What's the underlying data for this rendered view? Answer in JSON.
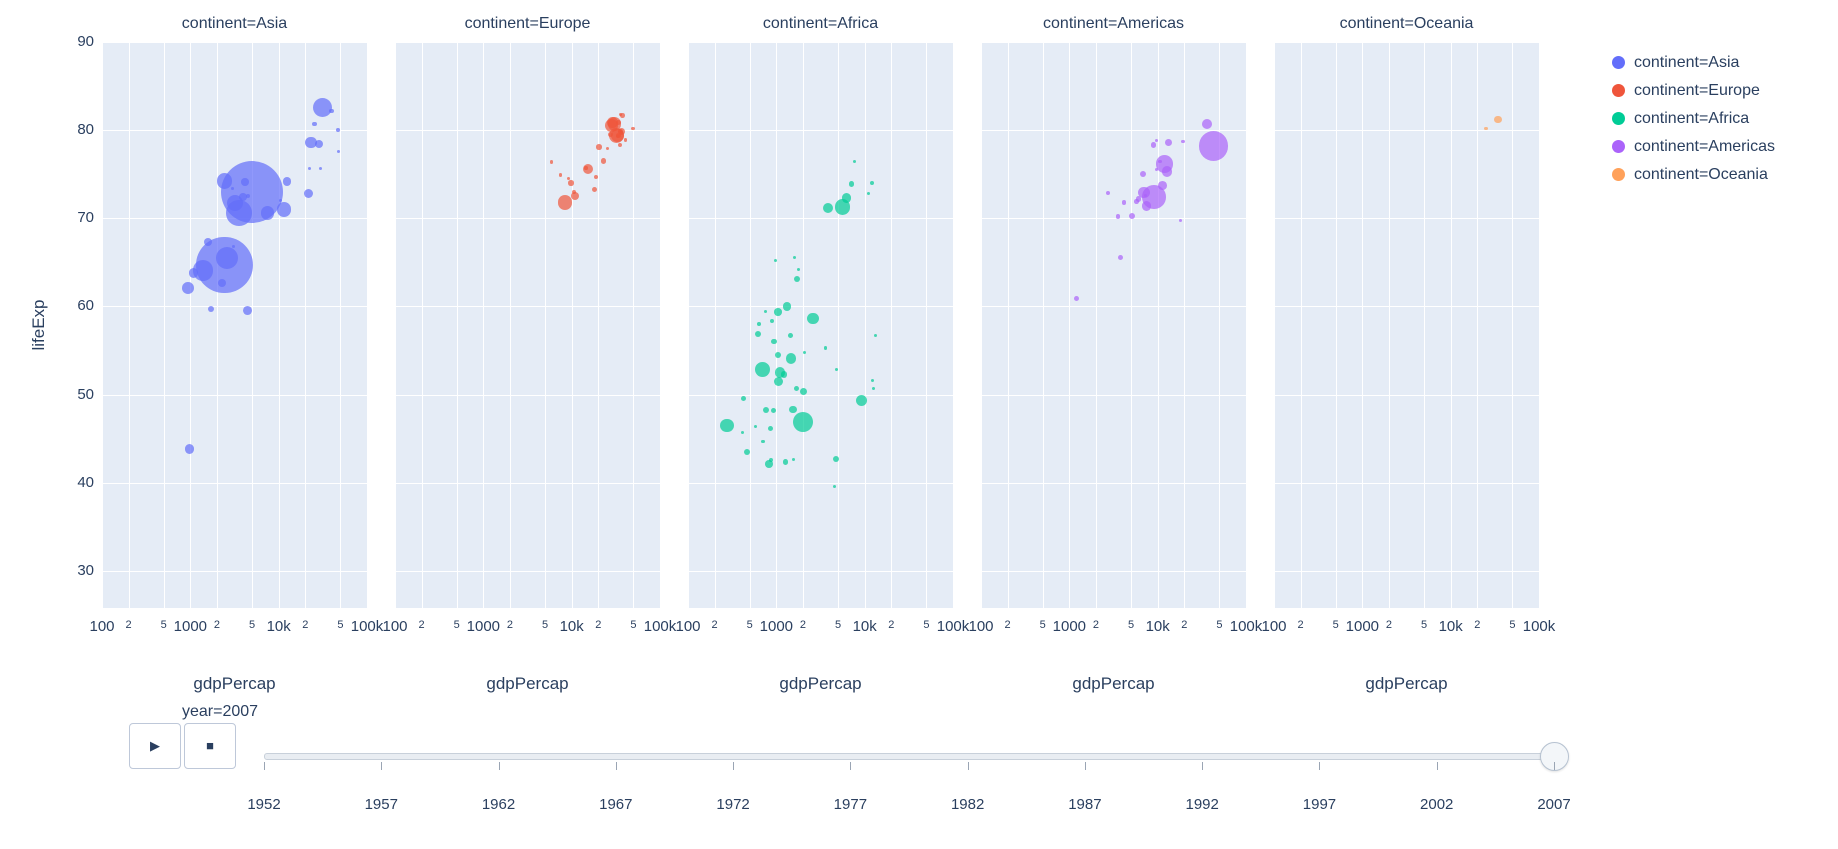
{
  "chart_data": {
    "type": "scatter",
    "title": "",
    "xlabel": "gdpPercap",
    "ylabel": "lifeExp",
    "x_scale": "log",
    "x_range": [
      100,
      100000
    ],
    "y_range": [
      25.8,
      90
    ],
    "y_ticks": [
      30,
      40,
      50,
      60,
      70,
      80,
      90
    ],
    "x_ticks": [
      {
        "value": 100,
        "label": "100",
        "minor": false
      },
      {
        "value": 200,
        "label": "2",
        "minor": true
      },
      {
        "value": 500,
        "label": "5",
        "minor": true
      },
      {
        "value": 1000,
        "label": "1000",
        "minor": false
      },
      {
        "value": 2000,
        "label": "2",
        "minor": true
      },
      {
        "value": 5000,
        "label": "5",
        "minor": true
      },
      {
        "value": 10000,
        "label": "10k",
        "minor": false
      },
      {
        "value": 20000,
        "label": "2",
        "minor": true
      },
      {
        "value": 50000,
        "label": "5",
        "minor": true
      },
      {
        "value": 100000,
        "label": "100k",
        "minor": false
      }
    ],
    "legend_position": "right",
    "grid": true,
    "size_dimension": "population_millions",
    "facets": [
      {
        "title": "continent=Asia",
        "series": "continent=Asia"
      },
      {
        "title": "continent=Europe",
        "series": "continent=Europe"
      },
      {
        "title": "continent=Africa",
        "series": "continent=Africa"
      },
      {
        "title": "continent=Americas",
        "series": "continent=Americas"
      },
      {
        "title": "continent=Oceania",
        "series": "continent=Oceania"
      }
    ],
    "series": [
      {
        "name": "continent=Asia",
        "color": "#636EFA",
        "points": [
          [
            975,
            43.8,
            31.9
          ],
          [
            29796,
            75.6,
            0.7
          ],
          [
            1391,
            64.1,
            150.4
          ],
          [
            1714,
            59.7,
            14.1
          ],
          [
            4959,
            73.0,
            1318.7
          ],
          [
            39725,
            82.2,
            7.0
          ],
          [
            2452,
            64.7,
            1110.4
          ],
          [
            3541,
            70.6,
            223.5
          ],
          [
            11606,
            71.0,
            69.5
          ],
          [
            4471,
            59.5,
            27.5
          ],
          [
            25523,
            80.7,
            6.4
          ],
          [
            31656,
            82.6,
            127.5
          ],
          [
            4519,
            72.5,
            6.1
          ],
          [
            1593,
            67.3,
            23.3
          ],
          [
            23348,
            78.6,
            49.0
          ],
          [
            47307,
            77.6,
            2.5
          ],
          [
            10461,
            72.0,
            4.0
          ],
          [
            12452,
            74.2,
            24.8
          ],
          [
            3096,
            66.8,
            2.9
          ],
          [
            944,
            62.1,
            47.8
          ],
          [
            1091,
            63.8,
            28.9
          ],
          [
            22316,
            75.6,
            3.2
          ],
          [
            2606,
            65.5,
            169.3
          ],
          [
            3190,
            71.7,
            91.1
          ],
          [
            21655,
            72.8,
            27.6
          ],
          [
            47143,
            80.0,
            4.6
          ],
          [
            3970,
            72.4,
            20.4
          ],
          [
            4185,
            74.1,
            19.3
          ],
          [
            28718,
            78.4,
            23.2
          ],
          [
            7458,
            70.6,
            65.1
          ],
          [
            2442,
            74.2,
            85.3
          ],
          [
            3025,
            73.4,
            4.0
          ],
          [
            2281,
            62.7,
            22.2
          ]
        ]
      },
      {
        "name": "continent=Europe",
        "color": "#EF553B",
        "points": [
          [
            5937,
            76.4,
            3.6
          ],
          [
            36126,
            79.8,
            8.2
          ],
          [
            33693,
            79.4,
            10.4
          ],
          [
            7446,
            74.9,
            4.6
          ],
          [
            10681,
            73.0,
            7.3
          ],
          [
            14619,
            75.7,
            4.5
          ],
          [
            22833,
            76.5,
            10.2
          ],
          [
            35278,
            78.3,
            5.5
          ],
          [
            33207,
            79.3,
            5.2
          ],
          [
            30470,
            80.7,
            61.1
          ],
          [
            32170,
            79.4,
            82.4
          ],
          [
            27538,
            79.5,
            10.7
          ],
          [
            18009,
            73.3,
            10.0
          ],
          [
            36181,
            81.8,
            0.3
          ],
          [
            40676,
            78.9,
            4.1
          ],
          [
            28570,
            80.5,
            58.1
          ],
          [
            9254,
            74.5,
            0.7
          ],
          [
            36798,
            79.8,
            16.6
          ],
          [
            49357,
            80.2,
            4.6
          ],
          [
            15390,
            75.6,
            38.5
          ],
          [
            20510,
            78.1,
            10.6
          ],
          [
            10808,
            72.5,
            22.3
          ],
          [
            9787,
            74.0,
            10.2
          ],
          [
            18678,
            74.7,
            5.4
          ],
          [
            25768,
            77.9,
            2.0
          ],
          [
            28821,
            80.9,
            40.4
          ],
          [
            33860,
            80.9,
            9.0
          ],
          [
            37506,
            81.7,
            7.5
          ],
          [
            8458,
            71.8,
            71.2
          ],
          [
            33203,
            79.4,
            60.8
          ]
        ]
      },
      {
        "name": "continent=Africa",
        "color": "#00CC96",
        "points": [
          [
            6223,
            72.3,
            33.3
          ],
          [
            4797,
            42.7,
            12.4
          ],
          [
            1441,
            56.7,
            8.1
          ],
          [
            12570,
            50.7,
            1.6
          ],
          [
            1217,
            52.3,
            14.3
          ],
          [
            430,
            49.6,
            8.4
          ],
          [
            2042,
            50.4,
            17.7
          ],
          [
            706,
            44.7,
            4.4
          ],
          [
            1704,
            50.7,
            10.2
          ],
          [
            986,
            65.2,
            0.7
          ],
          [
            278,
            46.5,
            64.6
          ],
          [
            3633,
            55.3,
            3.8
          ],
          [
            1545,
            48.3,
            18.0
          ],
          [
            2082,
            54.8,
            0.5
          ],
          [
            5581,
            71.3,
            80.3
          ],
          [
            12154,
            51.6,
            0.6
          ],
          [
            641,
            58.0,
            4.9
          ],
          [
            691,
            52.9,
            76.5
          ],
          [
            13206,
            56.7,
            1.5
          ],
          [
            753,
            59.4,
            1.7
          ],
          [
            1328,
            60.0,
            22.9
          ],
          [
            943,
            56.0,
            9.9
          ],
          [
            579,
            46.4,
            1.5
          ],
          [
            1463,
            54.1,
            35.6
          ],
          [
            1569,
            42.6,
            2.0
          ],
          [
            414,
            45.7,
            3.2
          ],
          [
            12057,
            74.0,
            6.0
          ],
          [
            1045,
            59.4,
            19.2
          ],
          [
            759,
            48.3,
            13.3
          ],
          [
            1043,
            54.5,
            12.0
          ],
          [
            1803,
            64.2,
            3.3
          ],
          [
            10957,
            72.8,
            1.3
          ],
          [
            3820,
            71.2,
            33.8
          ],
          [
            824,
            42.1,
            20.0
          ],
          [
            4811,
            52.9,
            2.1
          ],
          [
            620,
            56.9,
            12.9
          ],
          [
            2014,
            46.9,
            135.0
          ],
          [
            7670,
            76.4,
            0.8
          ],
          [
            863,
            46.2,
            8.9
          ],
          [
            1598,
            65.5,
            0.2
          ],
          [
            1712,
            63.1,
            12.3
          ],
          [
            862,
            42.6,
            6.1
          ],
          [
            926,
            48.2,
            9.1
          ],
          [
            9270,
            49.3,
            44.0
          ],
          [
            2602,
            58.6,
            42.3
          ],
          [
            4513,
            39.6,
            1.1
          ],
          [
            1107,
            52.5,
            38.1
          ],
          [
            883,
            58.4,
            5.7
          ],
          [
            7093,
            73.9,
            10.3
          ],
          [
            1056,
            51.5,
            29.2
          ],
          [
            1271,
            42.4,
            11.7
          ],
          [
            470,
            43.5,
            12.3
          ]
        ]
      },
      {
        "name": "continent=Americas",
        "color": "#AB63FA",
        "points": [
          [
            12779,
            75.3,
            40.3
          ],
          [
            3822,
            65.6,
            9.1
          ],
          [
            9066,
            72.4,
            190.0
          ],
          [
            36319,
            80.7,
            33.4
          ],
          [
            13172,
            78.6,
            16.3
          ],
          [
            7007,
            72.9,
            44.2
          ],
          [
            9645,
            78.8,
            4.1
          ],
          [
            8948,
            78.3,
            11.4
          ],
          [
            6025,
            72.2,
            9.3
          ],
          [
            6873,
            75.0,
            13.8
          ],
          [
            5728,
            71.9,
            6.9
          ],
          [
            5186,
            70.3,
            12.6
          ],
          [
            1202,
            60.9,
            8.5
          ],
          [
            3548,
            70.2,
            7.5
          ],
          [
            7321,
            72.6,
            2.8
          ],
          [
            11978,
            76.2,
            108.7
          ],
          [
            2749,
            72.9,
            5.7
          ],
          [
            9809,
            75.5,
            3.2
          ],
          [
            4173,
            71.8,
            6.7
          ],
          [
            7409,
            71.4,
            28.7
          ],
          [
            19329,
            78.7,
            4.0
          ],
          [
            18009,
            69.8,
            1.1
          ],
          [
            42952,
            78.2,
            301.1
          ],
          [
            10612,
            76.4,
            3.4
          ],
          [
            11416,
            73.7,
            26.1
          ]
        ]
      },
      {
        "name": "continent=Oceania",
        "color": "#FFA15A",
        "points": [
          [
            34435,
            81.2,
            20.4
          ],
          [
            25185,
            80.2,
            4.1
          ]
        ]
      }
    ]
  },
  "legend": {
    "entries": [
      {
        "label": "continent=Asia",
        "color": "#636EFA"
      },
      {
        "label": "continent=Europe",
        "color": "#EF553B"
      },
      {
        "label": "continent=Africa",
        "color": "#00CC96"
      },
      {
        "label": "continent=Americas",
        "color": "#AB63FA"
      },
      {
        "label": "continent=Oceania",
        "color": "#FFA15A"
      }
    ]
  },
  "slider": {
    "current_label": "year=2007",
    "value": "2007",
    "play_icon": "▶",
    "stop_icon": "■",
    "ticks": [
      "1952",
      "1957",
      "1962",
      "1967",
      "1972",
      "1977",
      "1982",
      "1987",
      "1992",
      "1997",
      "2002",
      "2007"
    ]
  },
  "colors": {
    "text": "#2a3f5f",
    "panel_background": "#e5ecf6",
    "gridline": "#ffffff"
  }
}
